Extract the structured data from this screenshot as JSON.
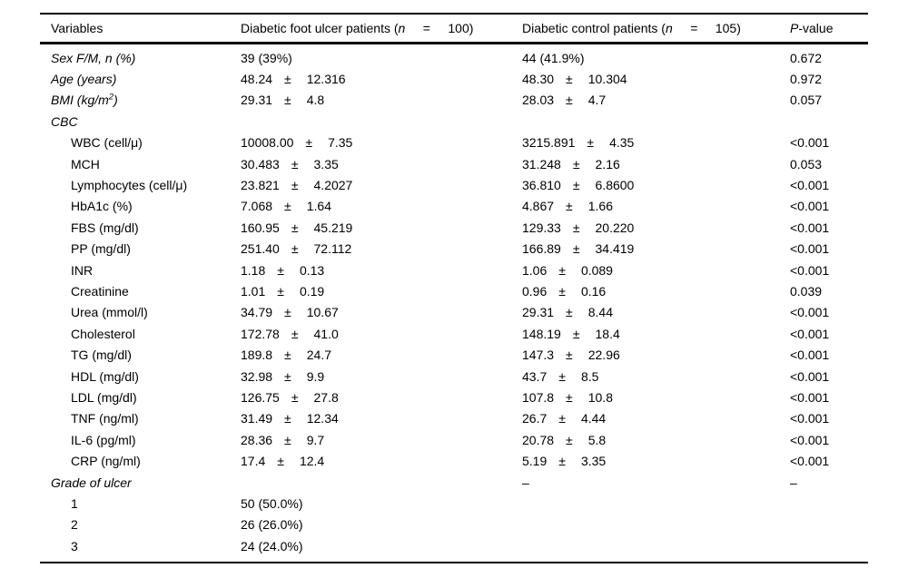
{
  "page": {
    "background": "#ffffff",
    "text_color": "#000000",
    "rule_color": "#000000"
  },
  "table": {
    "pm_symbol": "±",
    "dash": "–",
    "header": [
      {
        "name": "variables",
        "segments": [
          {
            "t": "Variables"
          }
        ]
      },
      {
        "name": "foot-ulcer-group",
        "segments": [
          {
            "t": "Diabetic foot ulcer patients ("
          },
          {
            "t": "n",
            "i": true
          },
          {
            "t": "     =     100)"
          }
        ]
      },
      {
        "name": "control-group",
        "segments": [
          {
            "t": "Diabetic control patients ("
          },
          {
            "t": "n",
            "i": true
          },
          {
            "t": "     =     105)"
          }
        ]
      },
      {
        "name": "p-value",
        "segments": [
          {
            "t": "P",
            "i": true
          },
          {
            "t": "-value"
          }
        ]
      }
    ],
    "rows": [
      {
        "indent": 0,
        "label": [
          {
            "t": "Sex F/M, n (%)",
            "i": true
          }
        ],
        "c1": {
          "text": "39 (39%)"
        },
        "c2": {
          "text": "44 (41.9%)"
        },
        "p": "0.672"
      },
      {
        "indent": 0,
        "label": [
          {
            "t": "Age (years)",
            "i": true
          }
        ],
        "c1": {
          "mean": "48.24",
          "sd": "12.316"
        },
        "c2": {
          "mean": "48.30",
          "sd": "10.304"
        },
        "p": "0.972"
      },
      {
        "indent": 0,
        "label": [
          {
            "t": "BMI (kg/m",
            "i": true
          },
          {
            "t": "2",
            "i": true,
            "sup": true
          },
          {
            "t": ")",
            "i": true
          }
        ],
        "c1": {
          "mean": "29.31",
          "sd": "4.8"
        },
        "c2": {
          "mean": "28.03",
          "sd": "4.7"
        },
        "p": "0.057"
      },
      {
        "indent": 0,
        "label": [
          {
            "t": "CBC",
            "i": true
          }
        ]
      },
      {
        "indent": 1,
        "label": [
          {
            "t": "WBC (cell/μ)"
          }
        ],
        "c1": {
          "mean": "10008.00",
          "sd": "7.35"
        },
        "c2": {
          "mean": "3215.891",
          "sd": "4.35"
        },
        "p": "<0.001"
      },
      {
        "indent": 1,
        "label": [
          {
            "t": "MCH"
          }
        ],
        "c1": {
          "mean": "30.483",
          "sd": "3.35"
        },
        "c2": {
          "mean": "31.248",
          "sd": "2.16"
        },
        "p": "0.053"
      },
      {
        "indent": 1,
        "label": [
          {
            "t": "Lymphocytes (cell/μ)"
          }
        ],
        "c1": {
          "mean": "23.821",
          "sd": "4.2027"
        },
        "c2": {
          "mean": "36.810",
          "sd": "6.8600"
        },
        "p": "<0.001"
      },
      {
        "indent": 1,
        "label": [
          {
            "t": "HbA1c (%)"
          }
        ],
        "c1": {
          "mean": "7.068",
          "sd": "1.64"
        },
        "c2": {
          "mean": "4.867",
          "sd": "1.66"
        },
        "p": "<0.001"
      },
      {
        "indent": 1,
        "label": [
          {
            "t": "FBS (mg/dl)"
          }
        ],
        "c1": {
          "mean": "160.95",
          "sd": "45.219"
        },
        "c2": {
          "mean": "129.33",
          "sd": "20.220"
        },
        "p": "<0.001"
      },
      {
        "indent": 1,
        "label": [
          {
            "t": "PP (mg/dl)"
          }
        ],
        "c1": {
          "mean": "251.40",
          "sd": "72.112"
        },
        "c2": {
          "mean": "166.89",
          "sd": "34.419"
        },
        "p": "<0.001"
      },
      {
        "indent": 1,
        "label": [
          {
            "t": "INR"
          }
        ],
        "c1": {
          "mean": "1.18",
          "sd": "0.13"
        },
        "c2": {
          "mean": "1.06",
          "sd": "0.089"
        },
        "p": "<0.001"
      },
      {
        "indent": 1,
        "label": [
          {
            "t": "Creatinine"
          }
        ],
        "c1": {
          "mean": "1.01",
          "sd": "0.19"
        },
        "c2": {
          "mean": "0.96",
          "sd": "0.16"
        },
        "p": "0.039"
      },
      {
        "indent": 1,
        "label": [
          {
            "t": "Urea (mmol/l)"
          }
        ],
        "c1": {
          "mean": "34.79",
          "sd": "10.67"
        },
        "c2": {
          "mean": "29.31",
          "sd": "8.44"
        },
        "p": "<0.001"
      },
      {
        "indent": 1,
        "label": [
          {
            "t": "Cholesterol"
          }
        ],
        "c1": {
          "mean": "172.78",
          "sd": "41.0"
        },
        "c2": {
          "mean": "148.19",
          "sd": "18.4"
        },
        "p": "<0.001"
      },
      {
        "indent": 1,
        "label": [
          {
            "t": "TG (mg/dl)"
          }
        ],
        "c1": {
          "mean": "189.8",
          "sd": "24.7"
        },
        "c2": {
          "mean": "147.3",
          "sd": "22.96"
        },
        "p": "<0.001"
      },
      {
        "indent": 1,
        "label": [
          {
            "t": "HDL (mg/dl)"
          }
        ],
        "c1": {
          "mean": "32.98",
          "sd": "9.9"
        },
        "c2": {
          "mean": "43.7",
          "sd": "8.5"
        },
        "p": "<0.001"
      },
      {
        "indent": 1,
        "label": [
          {
            "t": "LDL (mg/dl)"
          }
        ],
        "c1": {
          "mean": "126.75",
          "sd": "27.8"
        },
        "c2": {
          "mean": "107.8",
          "sd": "10.8"
        },
        "p": "<0.001"
      },
      {
        "indent": 1,
        "label": [
          {
            "t": "TNF (ng/ml)"
          }
        ],
        "c1": {
          "mean": "31.49",
          "sd": "12.34"
        },
        "c2": {
          "mean": "26.7",
          "sd": "4.44"
        },
        "p": "<0.001"
      },
      {
        "indent": 1,
        "label": [
          {
            "t": "IL-6 (pg/ml)"
          }
        ],
        "c1": {
          "mean": "28.36",
          "sd": "9.7"
        },
        "c2": {
          "mean": "20.78",
          "sd": "5.8"
        },
        "p": "<0.001"
      },
      {
        "indent": 1,
        "label": [
          {
            "t": "CRP (ng/ml)"
          }
        ],
        "c1": {
          "mean": "17.4",
          "sd": "12.4"
        },
        "c2": {
          "mean": "5.19",
          "sd": "3.35"
        },
        "p": "<0.001"
      },
      {
        "indent": 0,
        "label": [
          {
            "t": "Grade of ulcer",
            "i": true
          }
        ],
        "c2": {
          "text": "–"
        },
        "p": "–"
      },
      {
        "indent": 1,
        "label": [
          {
            "t": "1"
          }
        ],
        "c1": {
          "text": "50 (50.0%)"
        }
      },
      {
        "indent": 1,
        "label": [
          {
            "t": "2"
          }
        ],
        "c1": {
          "text": "26 (26.0%)"
        }
      },
      {
        "indent": 1,
        "label": [
          {
            "t": "3"
          }
        ],
        "c1": {
          "text": "24 (24.0%)"
        }
      }
    ]
  }
}
